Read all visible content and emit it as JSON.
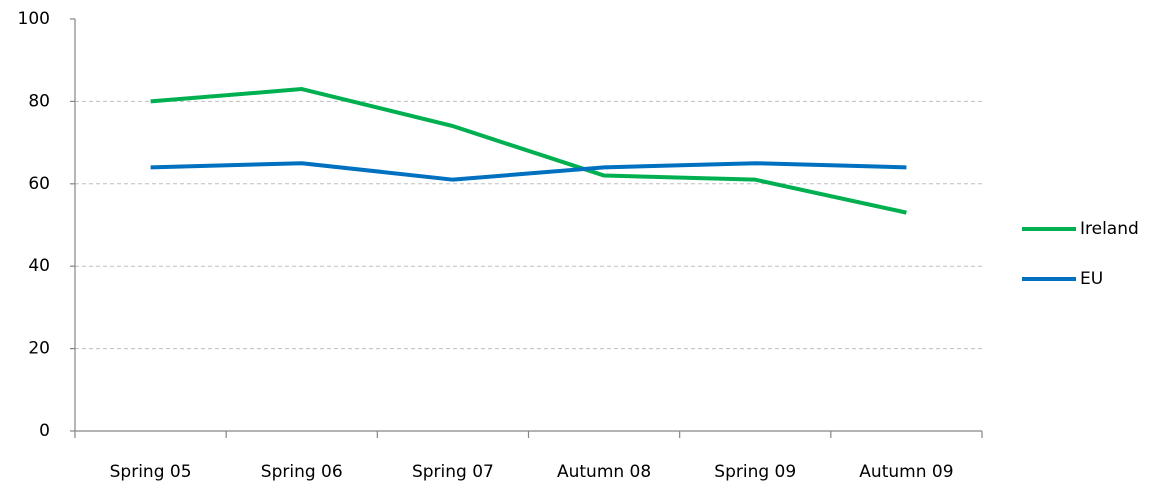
{
  "chart_data": {
    "type": "line",
    "categories": [
      "Spring 05",
      "Spring 06",
      "Spring 07",
      "Autumn 08",
      "Spring 09",
      "Autumn 09"
    ],
    "series": [
      {
        "name": "Ireland",
        "color": "#00b050",
        "values": [
          80,
          83,
          74,
          62,
          61,
          53
        ]
      },
      {
        "name": "EU",
        "color": "#0070c0",
        "values": [
          64,
          65,
          61,
          64,
          65,
          64
        ]
      }
    ],
    "ylim": [
      0,
      100
    ],
    "yticks": [
      0,
      20,
      40,
      60,
      80,
      100
    ],
    "grid": true,
    "legend": "right"
  }
}
